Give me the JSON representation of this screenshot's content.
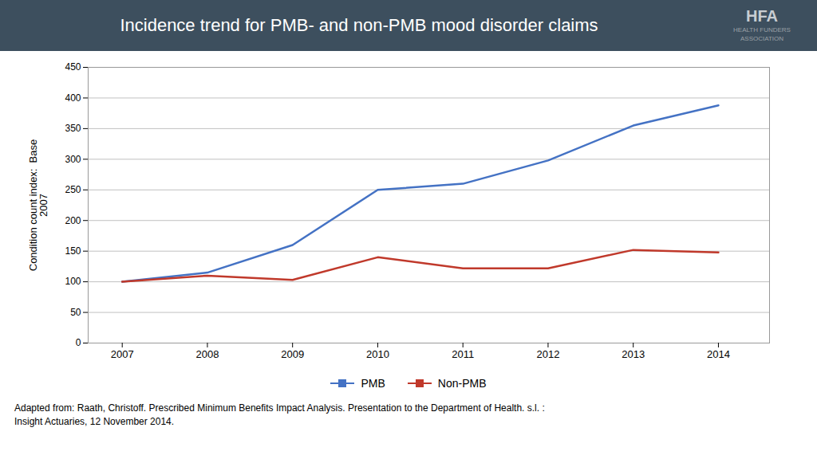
{
  "chart_data": {
    "type": "line",
    "title": "Incidence trend for PMB- and non-PMB mood disorder claims",
    "x": [
      2007,
      2008,
      2009,
      2010,
      2011,
      2012,
      2013,
      2014
    ],
    "series": [
      {
        "name": "PMB",
        "color": "#4472C4",
        "values": [
          100,
          115,
          160,
          250,
          260,
          298,
          355,
          388
        ]
      },
      {
        "name": "Non-PMB",
        "color": "#C0392B",
        "values": [
          100,
          110,
          103,
          140,
          122,
          122,
          152,
          148
        ]
      }
    ],
    "ylabel": "Condition count index:  Base\n2007",
    "xlim": [
      2006.6,
      2014.6
    ],
    "xticks": [
      2007,
      2008,
      2009,
      2010,
      2011,
      2012,
      2013,
      2014
    ],
    "ylim": [
      0,
      450
    ],
    "yticks": [
      0,
      50,
      100,
      150,
      200,
      250,
      300,
      350,
      400,
      450
    ],
    "grid": true,
    "legend": "bottom",
    "annotations": [
      "HFA",
      "HEALTH FUNDERS",
      "ASSOCIATION",
      "Adapted from: Raath, Christoff. Prescribed Minimum Benefits Impact Analysis. Presentation to the Department of Health. s.l. :",
      "Insight Actuaries, 12 November 2014."
    ]
  }
}
